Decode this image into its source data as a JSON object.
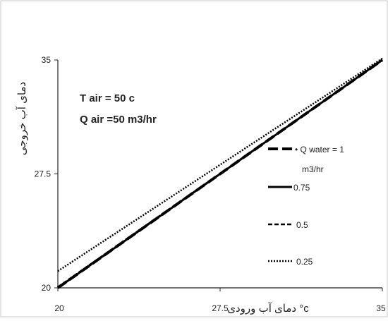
{
  "chart_data": {
    "type": "line",
    "title": "",
    "xlabel": "c° دمای آب ورودی",
    "ylabel": "دمای آب خروجی",
    "xlim": [
      20,
      35
    ],
    "ylim": [
      20,
      35
    ],
    "x_ticks": [
      "20",
      "27.5",
      "35"
    ],
    "y_ticks": [
      "20",
      "27.5",
      "35"
    ],
    "grid": false,
    "legend_position": "right",
    "annotations": [
      "T air = 50 c",
      "Q air =50 m3/hr"
    ],
    "series": [
      {
        "name": "Q water = 1 m3/hr",
        "style": "long-dash",
        "x": [
          20,
          35
        ],
        "y": [
          20.0,
          35.0
        ]
      },
      {
        "name": "0.75",
        "style": "solid",
        "x": [
          20,
          35
        ],
        "y": [
          20.0,
          35.0
        ]
      },
      {
        "name": "0.5",
        "style": "dashed",
        "x": [
          20,
          35
        ],
        "y": [
          20.05,
          35.0
        ]
      },
      {
        "name": "0.25",
        "style": "dotted",
        "x": [
          20,
          35
        ],
        "y": [
          21.1,
          35.1
        ]
      }
    ]
  },
  "legend": {
    "entries": [
      {
        "line1": "• Q water = 1",
        "line2": "m3/hr"
      },
      {
        "line1": "0.75"
      },
      {
        "line1": "0.5"
      },
      {
        "line1": "0.25"
      }
    ]
  },
  "colors": {
    "line": "#000000",
    "axis": "#222222",
    "frame": "#888888"
  }
}
